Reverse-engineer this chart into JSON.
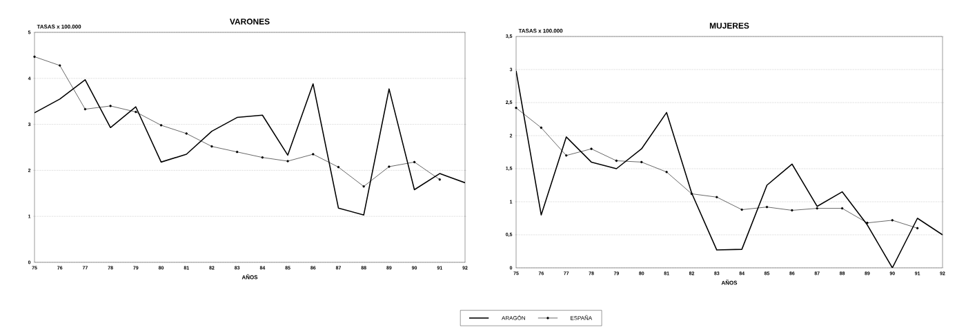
{
  "chart_data": [
    {
      "type": "line",
      "title": "VARONES",
      "ylabel": "TASAS x 100.000",
      "xlabel": "AÑOS",
      "categories": [
        "75",
        "76",
        "77",
        "78",
        "79",
        "80",
        "81",
        "82",
        "83",
        "84",
        "85",
        "86",
        "87",
        "88",
        "89",
        "90",
        "91",
        "92"
      ],
      "ylim": [
        0,
        5
      ],
      "yticks": [
        0,
        1,
        2,
        3,
        4,
        5
      ],
      "grid": "y",
      "series": [
        {
          "color": "#000000",
          "marker": "none",
          "values": [
            3.25,
            3.55,
            3.97,
            2.93,
            3.38,
            2.18,
            2.35,
            2.85,
            3.15,
            3.2,
            2.33,
            3.88,
            1.18,
            1.03,
            3.77,
            1.58,
            1.93,
            1.73
          ]
        },
        {
          "color": "#000000",
          "marker": "circle",
          "values": [
            4.47,
            4.28,
            3.33,
            3.4,
            3.27,
            2.98,
            2.8,
            2.52,
            2.4,
            2.28,
            2.2,
            2.35,
            2.07,
            1.65,
            2.08,
            2.18,
            1.8,
            null
          ]
        }
      ]
    },
    {
      "type": "line",
      "title": "MUJERES",
      "ylabel": "TASAS x 100.000",
      "xlabel": "AÑOS",
      "categories": [
        "75",
        "76",
        "77",
        "78",
        "79",
        "80",
        "81",
        "82",
        "83",
        "84",
        "85",
        "86",
        "87",
        "88",
        "89",
        "90",
        "91",
        "92"
      ],
      "ylim": [
        0,
        3.5
      ],
      "yticks": [
        0,
        {
          "value": 0.5,
          "label": "0,5"
        },
        1,
        {
          "value": 1.5,
          "label": "1,5"
        },
        2,
        {
          "value": 2.5,
          "label": "2,5"
        },
        3,
        {
          "value": 3.5,
          "label": "3,5"
        }
      ],
      "grid": "y",
      "legend": "bottom",
      "series": [
        {
          "name": "ARAGÓN",
          "color": "#000000",
          "marker": "none",
          "values": [
            2.98,
            0.8,
            1.98,
            1.6,
            1.5,
            1.8,
            2.35,
            1.13,
            0.27,
            0.28,
            1.25,
            1.57,
            0.93,
            1.15,
            0.65,
            0,
            0.75,
            0.5
          ]
        },
        {
          "name": "ESPAÑA",
          "color": "#000000",
          "marker": "circle",
          "values": [
            2.42,
            2.12,
            1.7,
            1.8,
            1.62,
            1.6,
            1.45,
            1.12,
            1.07,
            0.88,
            0.92,
            0.87,
            0.9,
            0.9,
            0.68,
            0.72,
            0.6,
            null
          ]
        }
      ]
    }
  ]
}
